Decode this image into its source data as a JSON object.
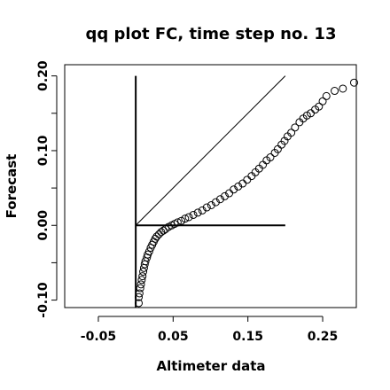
{
  "chart_data": {
    "type": "scatter",
    "title": "qq plot FC, time step no. 13",
    "xlabel": "Altimeter data",
    "ylabel": "Forecast",
    "xlim": [
      -0.095,
      0.295
    ],
    "ylim": [
      -0.11,
      0.215
    ],
    "xticks": [
      -0.05,
      0.05,
      0.15,
      0.25
    ],
    "xtick_labels": [
      "-0.05",
      "0.05",
      "0.15",
      "0.25"
    ],
    "yticks": [
      -0.1,
      0.0,
      0.1,
      0.2
    ],
    "ytick_labels": [
      "-0.10",
      "0.00",
      "0.10",
      "0.20"
    ],
    "grid": false,
    "legend": "none",
    "reference_lines": {
      "diagonal": {
        "x": [
          0,
          0.2
        ],
        "y": [
          0,
          0.2
        ]
      },
      "vertical": {
        "x": [
          0,
          0
        ],
        "y": [
          -0.11,
          0.2
        ]
      },
      "horizontal": {
        "x": [
          0,
          0.2
        ],
        "y": [
          0,
          0
        ]
      }
    },
    "series": [
      {
        "marker": "open-circle",
        "points": [
          [
            0.004,
            -0.104
          ],
          [
            0.004,
            -0.096
          ],
          [
            0.005,
            -0.091
          ],
          [
            0.006,
            -0.084
          ],
          [
            0.007,
            -0.079
          ],
          [
            0.008,
            -0.073
          ],
          [
            0.009,
            -0.068
          ],
          [
            0.01,
            -0.062
          ],
          [
            0.011,
            -0.057
          ],
          [
            0.012,
            -0.052
          ],
          [
            0.013,
            -0.048
          ],
          [
            0.015,
            -0.043
          ],
          [
            0.016,
            -0.039
          ],
          [
            0.018,
            -0.035
          ],
          [
            0.02,
            -0.03
          ],
          [
            0.022,
            -0.026
          ],
          [
            0.024,
            -0.022
          ],
          [
            0.026,
            -0.018
          ],
          [
            0.028,
            -0.015
          ],
          [
            0.031,
            -0.012
          ],
          [
            0.034,
            -0.009
          ],
          [
            0.037,
            -0.007
          ],
          [
            0.04,
            -0.005
          ],
          [
            0.044,
            -0.002
          ],
          [
            0.048,
            0.0
          ],
          [
            0.052,
            0.002
          ],
          [
            0.056,
            0.004
          ],
          [
            0.061,
            0.006
          ],
          [
            0.066,
            0.009
          ],
          [
            0.071,
            0.011
          ],
          [
            0.077,
            0.014
          ],
          [
            0.083,
            0.017
          ],
          [
            0.089,
            0.02
          ],
          [
            0.095,
            0.024
          ],
          [
            0.101,
            0.027
          ],
          [
            0.107,
            0.031
          ],
          [
            0.113,
            0.035
          ],
          [
            0.119,
            0.039
          ],
          [
            0.125,
            0.043
          ],
          [
            0.131,
            0.048
          ],
          [
            0.137,
            0.052
          ],
          [
            0.143,
            0.056
          ],
          [
            0.149,
            0.061
          ],
          [
            0.155,
            0.066
          ],
          [
            0.16,
            0.071
          ],
          [
            0.165,
            0.076
          ],
          [
            0.17,
            0.081
          ],
          [
            0.175,
            0.087
          ],
          [
            0.18,
            0.091
          ],
          [
            0.186,
            0.097
          ],
          [
            0.19,
            0.102
          ],
          [
            0.195,
            0.108
          ],
          [
            0.199,
            0.113
          ],
          [
            0.203,
            0.119
          ],
          [
            0.208,
            0.124
          ],
          [
            0.213,
            0.131
          ],
          [
            0.219,
            0.138
          ],
          [
            0.224,
            0.143
          ],
          [
            0.229,
            0.147
          ],
          [
            0.234,
            0.15
          ],
          [
            0.24,
            0.155
          ],
          [
            0.245,
            0.159
          ],
          [
            0.25,
            0.166
          ],
          [
            0.255,
            0.173
          ],
          [
            0.266,
            0.18
          ],
          [
            0.277,
            0.183
          ],
          [
            0.292,
            0.191
          ]
        ]
      }
    ]
  }
}
